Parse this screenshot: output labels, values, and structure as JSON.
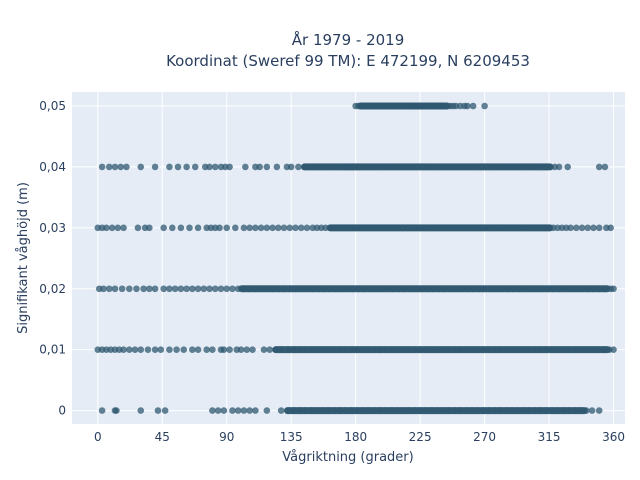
{
  "chart_data": {
    "type": "scatter",
    "title_line1": "År 1979 - 2019",
    "title_line2": "Koordinat (Sweref 99 TM): E 472199, N 6209453",
    "xlabel": "Vågriktning (grader)",
    "ylabel": "Signifikant våghöjd (m)",
    "xlim": [
      -18,
      368
    ],
    "ylim": [
      -0.0022,
      0.0523
    ],
    "x_ticks": [
      0,
      45,
      90,
      135,
      180,
      225,
      270,
      315,
      360
    ],
    "x_tick_labels": [
      "0",
      "45",
      "90",
      "135",
      "180",
      "225",
      "270",
      "315",
      "360"
    ],
    "y_ticks": [
      0,
      0.01,
      0.02,
      0.03,
      0.04,
      0.05
    ],
    "y_tick_labels": [
      "0",
      "0,01",
      "0,02",
      "0,03",
      "0,04",
      "0,05"
    ],
    "grid": true,
    "background": "#e5ecf6",
    "marker_color": "#2f5870",
    "series": [
      {
        "y": 0.05,
        "x": [
          180,
          182,
          184,
          186,
          188,
          190,
          192,
          194,
          196,
          198,
          200,
          202,
          204,
          206,
          208,
          210,
          212,
          214,
          216,
          218,
          220,
          222,
          224,
          226,
          228,
          230,
          232,
          234,
          236,
          238,
          240,
          242,
          244,
          246,
          248,
          250,
          253,
          256,
          258,
          262,
          270
        ]
      },
      {
        "y": 0.04,
        "x": [
          3,
          8,
          12,
          16,
          20,
          30,
          40,
          50,
          56,
          62,
          68,
          75,
          78,
          82,
          86,
          89,
          92,
          103,
          110,
          113,
          118,
          125,
          132,
          135,
          140,
          144,
          147,
          150,
          152,
          155,
          158,
          160,
          163,
          165,
          168,
          170,
          172,
          174,
          176,
          178,
          180,
          182,
          185,
          188,
          190,
          193,
          196,
          199,
          202,
          205,
          208,
          211,
          214,
          217,
          220,
          223,
          226,
          229,
          232,
          235,
          238,
          241,
          244,
          247,
          250,
          253,
          256,
          259,
          262,
          265,
          268,
          271,
          274,
          277,
          280,
          283,
          286,
          289,
          292,
          295,
          298,
          301,
          304,
          307,
          310,
          313,
          316,
          319,
          322,
          328,
          350,
          354
        ]
      },
      {
        "y": 0.03,
        "x": [
          0,
          3,
          6,
          10,
          14,
          18,
          28,
          33,
          36,
          46,
          52,
          58,
          64,
          70,
          76,
          79,
          82,
          85,
          90,
          96,
          102,
          106,
          110,
          114,
          118,
          122,
          126,
          130,
          134,
          138,
          142,
          146,
          150,
          153,
          156,
          159,
          162,
          165,
          168,
          171,
          174,
          177,
          180,
          183,
          186,
          189,
          192,
          195,
          198,
          201,
          204,
          207,
          210,
          213,
          216,
          219,
          222,
          225,
          228,
          231,
          234,
          237,
          240,
          243,
          246,
          249,
          252,
          255,
          258,
          261,
          264,
          267,
          270,
          273,
          276,
          279,
          282,
          285,
          288,
          291,
          294,
          297,
          300,
          303,
          306,
          309,
          312,
          315,
          318,
          321,
          324,
          327,
          330,
          334,
          338,
          342,
          346,
          350,
          355,
          358
        ]
      },
      {
        "y": 0.02,
        "x": [
          1,
          4,
          8,
          12,
          17,
          22,
          27,
          32,
          36,
          40,
          46,
          50,
          54,
          58,
          62,
          66,
          70,
          74,
          78,
          82,
          86,
          90,
          94,
          98,
          102,
          106,
          110,
          114,
          118,
          122,
          126,
          130,
          134,
          138,
          142,
          146,
          150,
          154,
          158,
          162,
          166,
          170,
          174,
          178,
          182,
          186,
          190,
          194,
          198,
          202,
          206,
          210,
          214,
          218,
          222,
          226,
          230,
          234,
          238,
          242,
          246,
          250,
          254,
          258,
          262,
          266,
          270,
          274,
          278,
          282,
          286,
          290,
          294,
          298,
          302,
          306,
          310,
          314,
          318,
          322,
          326,
          330,
          334,
          338,
          342,
          346,
          350,
          354,
          358,
          360
        ]
      },
      {
        "y": 0.01,
        "x": [
          0,
          3,
          6,
          9,
          12,
          15,
          18,
          22,
          26,
          30,
          35,
          40,
          44,
          50,
          55,
          60,
          66,
          70,
          76,
          80,
          86,
          88,
          92,
          97,
          100,
          104,
          108,
          116,
          120,
          124,
          128,
          133,
          137,
          141,
          145,
          149,
          153,
          157,
          161,
          165,
          169,
          173,
          177,
          181,
          185,
          189,
          193,
          197,
          201,
          205,
          209,
          213,
          217,
          221,
          225,
          229,
          233,
          237,
          241,
          245,
          249,
          253,
          257,
          261,
          265,
          269,
          273,
          277,
          281,
          285,
          289,
          293,
          297,
          301,
          305,
          309,
          313,
          317,
          321,
          325,
          329,
          333,
          337,
          341,
          345,
          349,
          353,
          357,
          360
        ]
      },
      {
        "y": 0,
        "x": [
          3,
          12,
          13,
          30,
          42,
          47,
          80,
          84,
          88,
          94,
          98,
          102,
          106,
          110,
          118,
          128,
          133,
          137,
          141,
          145,
          149,
          153,
          157,
          161,
          165,
          169,
          173,
          177,
          181,
          185,
          189,
          193,
          197,
          201,
          205,
          209,
          213,
          217,
          221,
          225,
          229,
          233,
          237,
          241,
          245,
          249,
          253,
          257,
          261,
          265,
          269,
          273,
          277,
          281,
          285,
          289,
          293,
          297,
          301,
          305,
          309,
          313,
          317,
          321,
          325,
          329,
          333,
          337,
          341,
          345,
          350
        ]
      }
    ],
    "dense_ranges": [
      {
        "y": 0.05,
        "from": 181,
        "to": 246
      },
      {
        "y": 0.04,
        "from": 142,
        "to": 318
      },
      {
        "y": 0.03,
        "from": 160,
        "to": 318
      },
      {
        "y": 0.02,
        "from": 98,
        "to": 358
      },
      {
        "y": 0.01,
        "from": 122,
        "to": 358
      },
      {
        "y": 0,
        "from": 130,
        "to": 342
      }
    ]
  }
}
